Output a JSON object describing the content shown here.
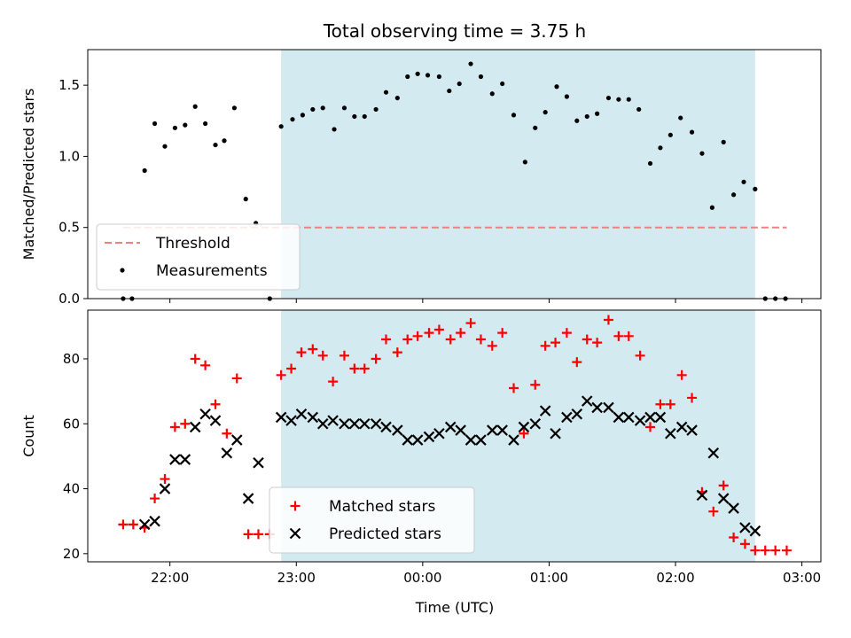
{
  "chart_data": {
    "title": "Total observing time = 3.75 h",
    "xlabel": "Time (UTC)",
    "x_unit": "hours after 00:00 UTC",
    "xlim": [
      -2.65,
      3.15
    ],
    "xticks": [
      {
        "value": -2,
        "label": "22:00"
      },
      {
        "value": -1,
        "label": "23:00"
      },
      {
        "value": 0,
        "label": "00:00"
      },
      {
        "value": 1,
        "label": "01:00"
      },
      {
        "value": 2,
        "label": "02:00"
      },
      {
        "value": 3,
        "label": "03:00"
      }
    ],
    "shaded_interval": {
      "start": -1.12,
      "end": 2.63,
      "color": "#d3eaf0"
    },
    "panels": [
      {
        "type": "scatter",
        "ylabel": "Matched/Predicted stars",
        "ylim": [
          0,
          1.75
        ],
        "yticks": [
          0.0,
          0.5,
          1.0,
          1.5
        ],
        "ytick_labels": [
          "0.0",
          "0.5",
          "1.0",
          "1.5"
        ],
        "legend": {
          "position": "lower-left"
        },
        "threshold": {
          "name": "Threshold",
          "value": 0.5,
          "x_start": -2.37,
          "x_end": 2.88,
          "color": "#f08080"
        },
        "series": [
          {
            "name": "Measurements",
            "color": "#000000",
            "marker": "dot",
            "points": [
              [
                -2.37,
                0.0
              ],
              [
                -2.3,
                0.0
              ],
              [
                -2.2,
                0.9
              ],
              [
                -2.12,
                1.23
              ],
              [
                -2.04,
                1.07
              ],
              [
                -1.96,
                1.2
              ],
              [
                -1.88,
                1.22
              ],
              [
                -1.8,
                1.35
              ],
              [
                -1.72,
                1.23
              ],
              [
                -1.64,
                1.08
              ],
              [
                -1.57,
                1.11
              ],
              [
                -1.49,
                1.34
              ],
              [
                -1.4,
                0.7
              ],
              [
                -1.32,
                0.53
              ],
              [
                -1.21,
                0.0
              ],
              [
                -1.12,
                1.21
              ],
              [
                -1.03,
                1.26
              ],
              [
                -0.95,
                1.29
              ],
              [
                -0.87,
                1.33
              ],
              [
                -0.79,
                1.34
              ],
              [
                -0.7,
                1.19
              ],
              [
                -0.62,
                1.34
              ],
              [
                -0.54,
                1.28
              ],
              [
                -0.46,
                1.28
              ],
              [
                -0.37,
                1.33
              ],
              [
                -0.29,
                1.45
              ],
              [
                -0.2,
                1.41
              ],
              [
                -0.12,
                1.56
              ],
              [
                -0.04,
                1.58
              ],
              [
                0.04,
                1.57
              ],
              [
                0.13,
                1.56
              ],
              [
                0.21,
                1.46
              ],
              [
                0.29,
                1.51
              ],
              [
                0.38,
                1.65
              ],
              [
                0.46,
                1.56
              ],
              [
                0.55,
                1.44
              ],
              [
                0.63,
                1.51
              ],
              [
                0.72,
                1.29
              ],
              [
                0.81,
                0.96
              ],
              [
                0.89,
                1.2
              ],
              [
                0.97,
                1.31
              ],
              [
                1.06,
                1.49
              ],
              [
                1.14,
                1.42
              ],
              [
                1.22,
                1.25
              ],
              [
                1.3,
                1.28
              ],
              [
                1.38,
                1.3
              ],
              [
                1.47,
                1.41
              ],
              [
                1.55,
                1.4
              ],
              [
                1.63,
                1.4
              ],
              [
                1.71,
                1.33
              ],
              [
                1.8,
                0.95
              ],
              [
                1.88,
                1.06
              ],
              [
                1.96,
                1.15
              ],
              [
                2.04,
                1.27
              ],
              [
                2.13,
                1.17
              ],
              [
                2.21,
                1.02
              ],
              [
                2.29,
                0.64
              ],
              [
                2.38,
                1.1
              ],
              [
                2.46,
                0.73
              ],
              [
                2.54,
                0.82
              ],
              [
                2.63,
                0.77
              ],
              [
                2.71,
                0.0
              ],
              [
                2.79,
                0.0
              ],
              [
                2.87,
                0.0
              ]
            ]
          }
        ]
      },
      {
        "type": "scatter",
        "ylabel": "Count",
        "ylim": [
          17.5,
          95
        ],
        "yticks": [
          20,
          40,
          60,
          80
        ],
        "ytick_labels": [
          "20",
          "40",
          "60",
          "80"
        ],
        "legend": {
          "position": "lower-center"
        },
        "series": [
          {
            "name": "Matched stars",
            "color": "#ff0000",
            "marker": "plus",
            "points": [
              [
                -2.37,
                29
              ],
              [
                -2.29,
                29
              ],
              [
                -2.2,
                28
              ],
              [
                -2.12,
                37
              ],
              [
                -2.04,
                43
              ],
              [
                -1.96,
                59
              ],
              [
                -1.88,
                60
              ],
              [
                -1.8,
                80
              ],
              [
                -1.72,
                78
              ],
              [
                -1.64,
                66
              ],
              [
                -1.55,
                57
              ],
              [
                -1.47,
                74
              ],
              [
                -1.38,
                26
              ],
              [
                -1.3,
                26
              ],
              [
                -1.21,
                26
              ],
              [
                -1.12,
                75
              ],
              [
                -1.04,
                77
              ],
              [
                -0.96,
                82
              ],
              [
                -0.87,
                83
              ],
              [
                -0.79,
                81
              ],
              [
                -0.71,
                73
              ],
              [
                -0.62,
                81
              ],
              [
                -0.54,
                77
              ],
              [
                -0.46,
                77
              ],
              [
                -0.37,
                80
              ],
              [
                -0.29,
                86
              ],
              [
                -0.2,
                82
              ],
              [
                -0.12,
                86
              ],
              [
                -0.04,
                87
              ],
              [
                0.05,
                88
              ],
              [
                0.13,
                89
              ],
              [
                0.22,
                86
              ],
              [
                0.3,
                88
              ],
              [
                0.38,
                91
              ],
              [
                0.46,
                86
              ],
              [
                0.55,
                84
              ],
              [
                0.63,
                88
              ],
              [
                0.72,
                71
              ],
              [
                0.8,
                57
              ],
              [
                0.89,
                72
              ],
              [
                0.97,
                84
              ],
              [
                1.05,
                85
              ],
              [
                1.14,
                88
              ],
              [
                1.22,
                79
              ],
              [
                1.3,
                86
              ],
              [
                1.38,
                85
              ],
              [
                1.47,
                92
              ],
              [
                1.55,
                87
              ],
              [
                1.63,
                87
              ],
              [
                1.72,
                81
              ],
              [
                1.8,
                59
              ],
              [
                1.88,
                66
              ],
              [
                1.96,
                66
              ],
              [
                2.05,
                75
              ],
              [
                2.13,
                68
              ],
              [
                2.21,
                39
              ],
              [
                2.3,
                33
              ],
              [
                2.38,
                41
              ],
              [
                2.46,
                25
              ],
              [
                2.55,
                23
              ],
              [
                2.63,
                21
              ],
              [
                2.71,
                21
              ],
              [
                2.79,
                21
              ],
              [
                2.88,
                21
              ]
            ]
          },
          {
            "name": "Predicted stars",
            "color": "#000000",
            "marker": "cross",
            "points": [
              [
                -2.2,
                29
              ],
              [
                -2.12,
                30
              ],
              [
                -2.04,
                40
              ],
              [
                -1.96,
                49
              ],
              [
                -1.88,
                49
              ],
              [
                -1.8,
                59
              ],
              [
                -1.72,
                63
              ],
              [
                -1.64,
                61
              ],
              [
                -1.55,
                51
              ],
              [
                -1.47,
                55
              ],
              [
                -1.38,
                37
              ],
              [
                -1.3,
                48
              ],
              [
                -1.12,
                62
              ],
              [
                -1.04,
                61
              ],
              [
                -0.96,
                63
              ],
              [
                -0.87,
                62
              ],
              [
                -0.79,
                60
              ],
              [
                -0.71,
                61
              ],
              [
                -0.62,
                60
              ],
              [
                -0.54,
                60
              ],
              [
                -0.46,
                60
              ],
              [
                -0.37,
                60
              ],
              [
                -0.29,
                59
              ],
              [
                -0.2,
                58
              ],
              [
                -0.12,
                55
              ],
              [
                -0.04,
                55
              ],
              [
                0.05,
                56
              ],
              [
                0.13,
                57
              ],
              [
                0.22,
                59
              ],
              [
                0.3,
                58
              ],
              [
                0.38,
                55
              ],
              [
                0.46,
                55
              ],
              [
                0.55,
                58
              ],
              [
                0.63,
                58
              ],
              [
                0.72,
                55
              ],
              [
                0.8,
                59
              ],
              [
                0.89,
                60
              ],
              [
                0.97,
                64
              ],
              [
                1.05,
                57
              ],
              [
                1.14,
                62
              ],
              [
                1.22,
                63
              ],
              [
                1.3,
                67
              ],
              [
                1.38,
                65
              ],
              [
                1.47,
                65
              ],
              [
                1.55,
                62
              ],
              [
                1.63,
                62
              ],
              [
                1.72,
                61
              ],
              [
                1.8,
                62
              ],
              [
                1.88,
                62
              ],
              [
                1.96,
                57
              ],
              [
                2.05,
                59
              ],
              [
                2.13,
                58
              ],
              [
                2.21,
                38
              ],
              [
                2.3,
                51
              ],
              [
                2.38,
                37
              ],
              [
                2.46,
                34
              ],
              [
                2.55,
                28
              ],
              [
                2.63,
                27
              ]
            ]
          }
        ]
      }
    ]
  }
}
